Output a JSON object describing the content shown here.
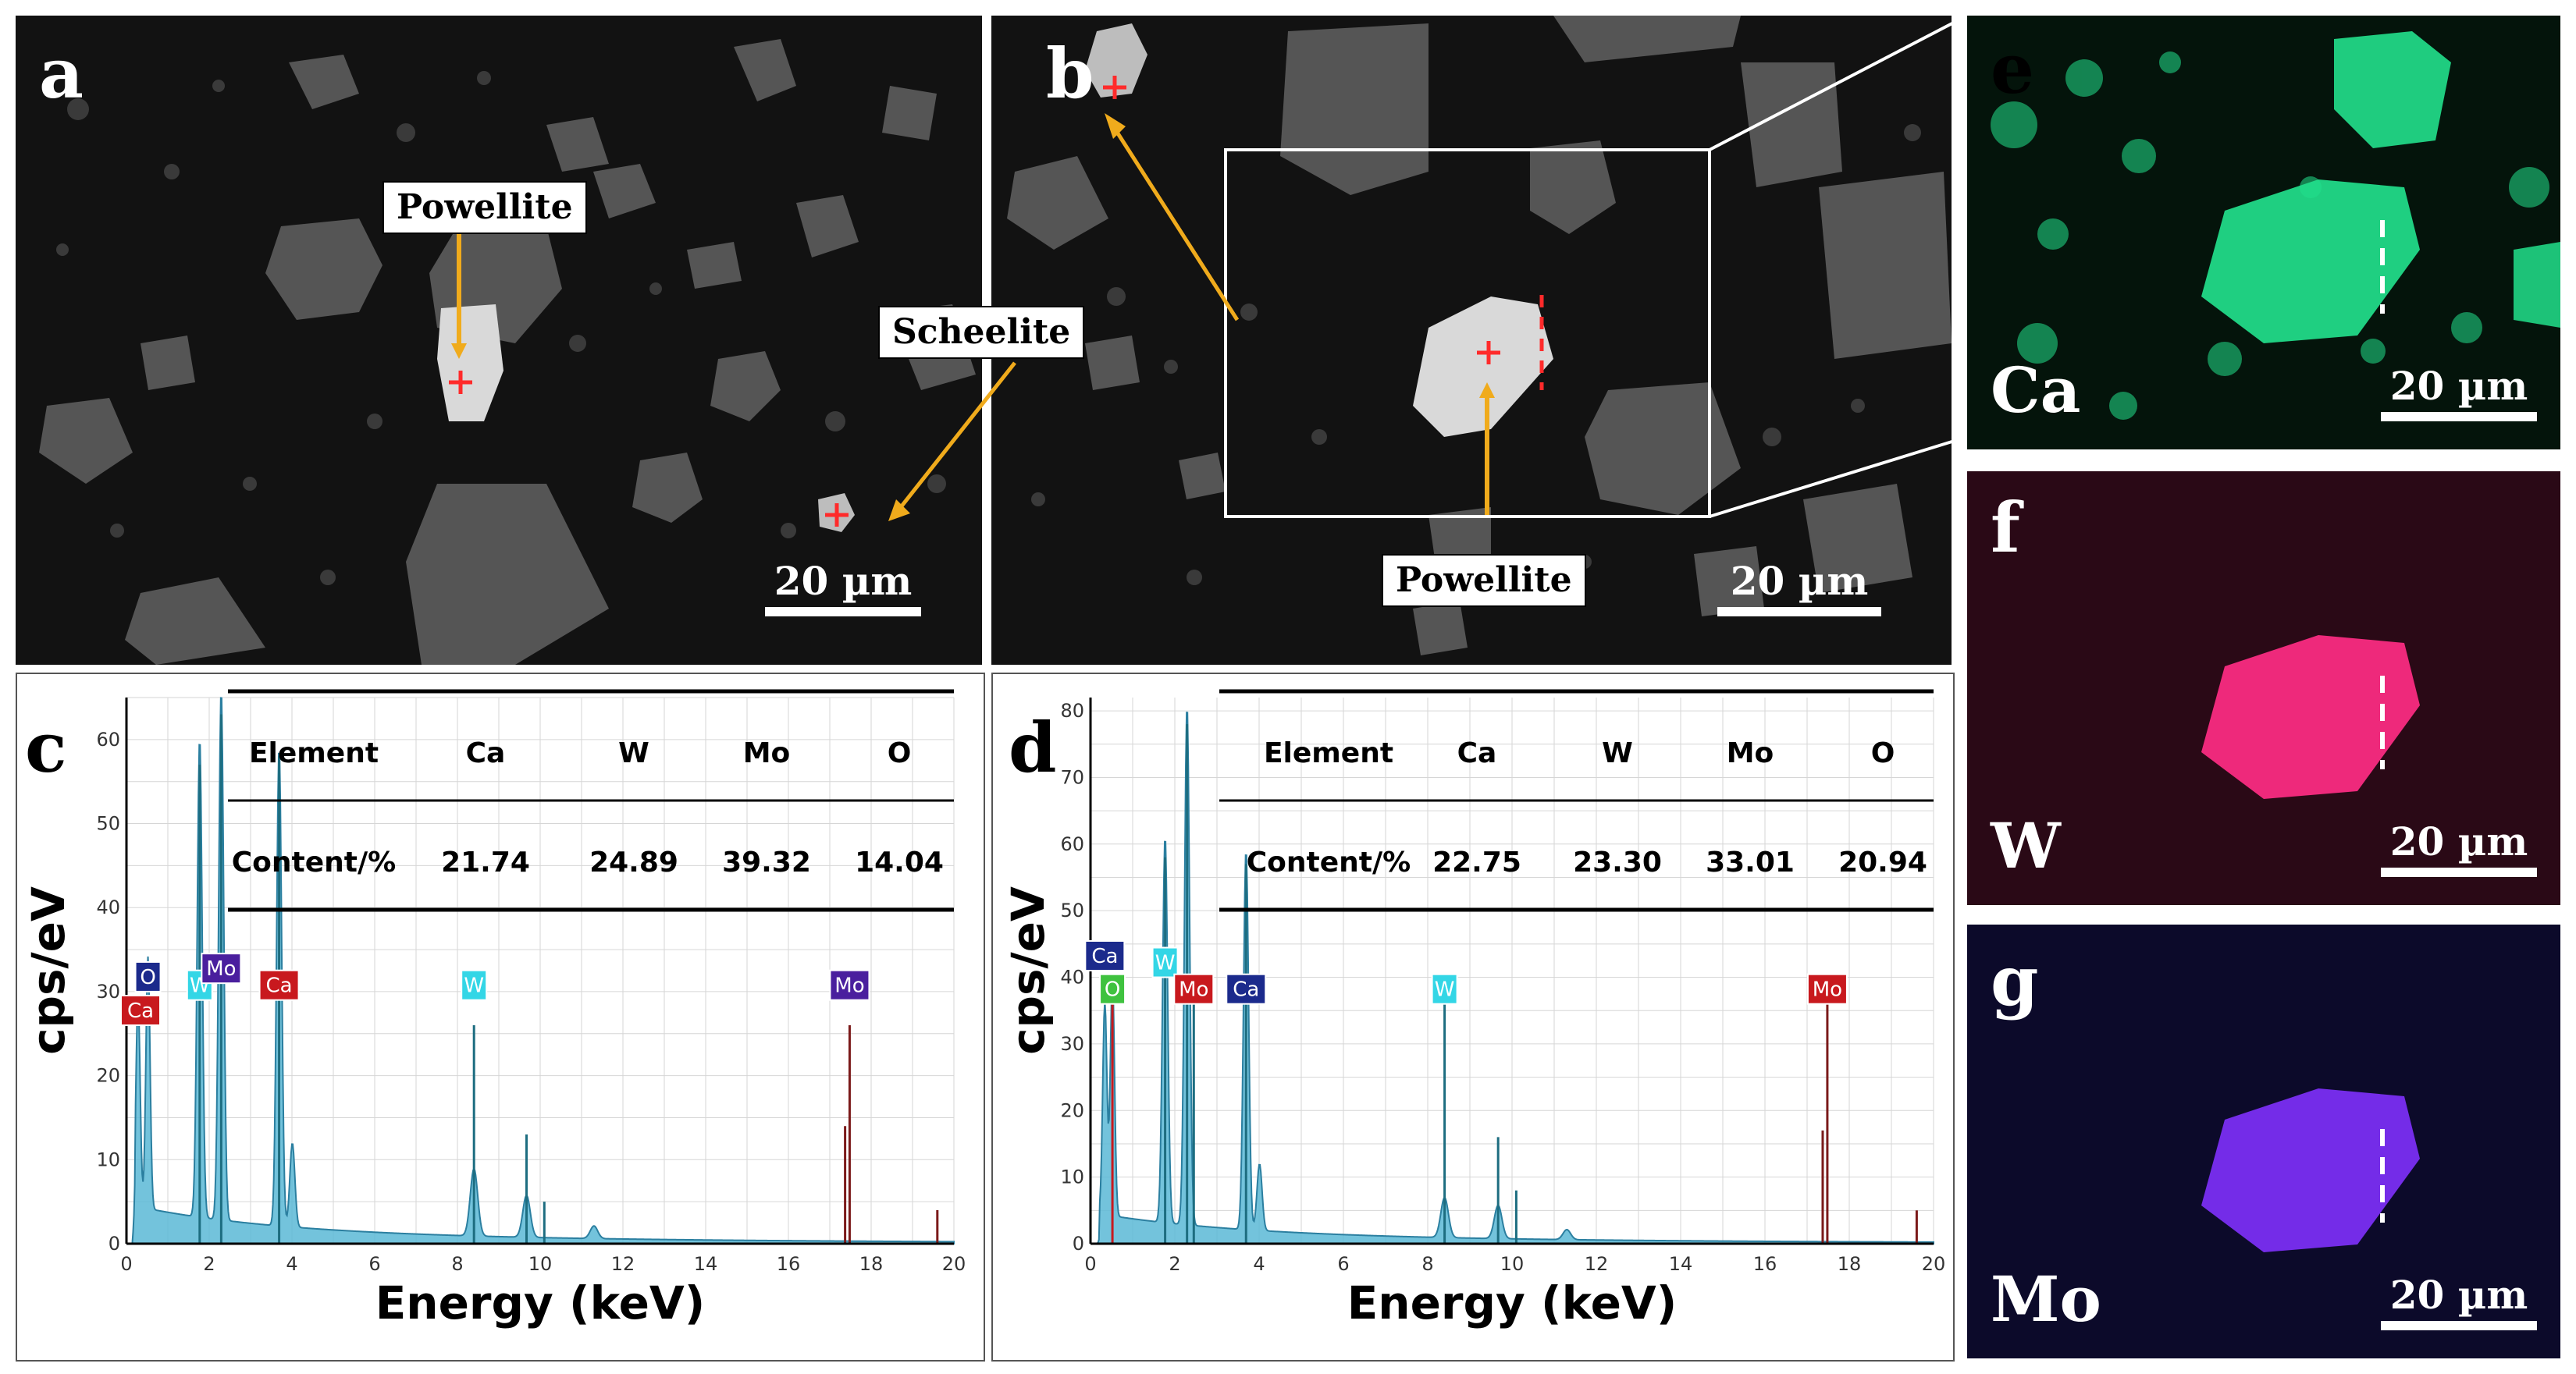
{
  "panels": {
    "a": {
      "letter": "a",
      "callout": "Powellite",
      "scale": "20 µm"
    },
    "b": {
      "letter": "b",
      "callout_scheelite": "Scheelite",
      "callout_powellite": "Powellite",
      "scale": "20 µm"
    },
    "e": {
      "letter": "e",
      "element": "Ca",
      "scale": "20 µm"
    },
    "f": {
      "letter": "f",
      "element": "W",
      "scale": "20 µm"
    },
    "g": {
      "letter": "g",
      "element": "Mo",
      "scale": "20 µm"
    },
    "c": {
      "letter": "c"
    },
    "d": {
      "letter": "d"
    }
  },
  "colors": {
    "ca_map": "#22e08c",
    "w_map": "#ff2d84",
    "mo_map": "#7a2ef2",
    "spectrum_fill": "#5bb9d6"
  },
  "chart_data": [
    {
      "type": "line",
      "panel": "c",
      "xlabel": "Energy (keV)",
      "ylabel": "cps/eV",
      "xlim": [
        0,
        20
      ],
      "ylim": [
        0,
        65
      ],
      "xticks": [
        0,
        2,
        4,
        6,
        8,
        10,
        12,
        14,
        16,
        18,
        20
      ],
      "yticks": [
        0,
        10,
        20,
        30,
        40,
        50,
        60
      ],
      "peaks": [
        {
          "x": 0.28,
          "y": 25
        },
        {
          "x": 0.52,
          "y": 30
        },
        {
          "x": 1.77,
          "y": 57
        },
        {
          "x": 2.29,
          "y": 63
        },
        {
          "x": 3.69,
          "y": 57
        },
        {
          "x": 4.01,
          "y": 10
        },
        {
          "x": 8.4,
          "y": 8
        },
        {
          "x": 9.67,
          "y": 5
        },
        {
          "x": 11.3,
          "y": 1.5
        }
      ],
      "lines": [
        {
          "x": 1.77,
          "h": 57
        },
        {
          "x": 2.29,
          "h": 63
        },
        {
          "x": 3.69,
          "h": 58
        },
        {
          "x": 8.4,
          "h": 26
        },
        {
          "x": 9.67,
          "h": 13
        },
        {
          "x": 10.1,
          "h": 5
        },
        {
          "x": 17.48,
          "h": 26
        },
        {
          "x": 17.37,
          "h": 14
        },
        {
          "x": 19.6,
          "h": 4
        }
      ],
      "markers": [
        {
          "label": "O",
          "x": 0.52,
          "y": 30,
          "color": "#1b2a8c"
        },
        {
          "label": "Ca",
          "x": 0.34,
          "y": 26,
          "color": "#c8191e"
        },
        {
          "label": "W",
          "x": 1.77,
          "y": 29,
          "color": "#33d6e6"
        },
        {
          "label": "Mo",
          "x": 2.29,
          "y": 31,
          "color": "#4a1f9e"
        },
        {
          "label": "Ca",
          "x": 3.69,
          "y": 29,
          "color": "#c8191e"
        },
        {
          "label": "W",
          "x": 8.4,
          "y": 29,
          "color": "#33d6e6"
        },
        {
          "label": "Mo",
          "x": 17.48,
          "y": 29,
          "color": "#4a1f9e"
        }
      ],
      "table": {
        "headers": [
          "Element",
          "Ca",
          "W",
          "Mo",
          "O"
        ],
        "row_label": "Content/%",
        "values": [
          "21.74",
          "24.89",
          "39.32",
          "14.04"
        ]
      }
    },
    {
      "type": "line",
      "panel": "d",
      "xlabel": "Energy (keV)",
      "ylabel": "cps/eV",
      "xlim": [
        0,
        20
      ],
      "ylim": [
        0,
        82
      ],
      "xticks": [
        0,
        2,
        4,
        6,
        8,
        10,
        12,
        14,
        16,
        18,
        20
      ],
      "yticks": [
        0,
        10,
        20,
        30,
        40,
        50,
        60,
        70,
        80
      ],
      "peaks": [
        {
          "x": 0.34,
          "y": 32
        },
        {
          "x": 0.52,
          "y": 36
        },
        {
          "x": 1.77,
          "y": 58
        },
        {
          "x": 2.29,
          "y": 78
        },
        {
          "x": 3.69,
          "y": 57
        },
        {
          "x": 4.01,
          "y": 10
        },
        {
          "x": 8.4,
          "y": 6
        },
        {
          "x": 9.67,
          "y": 5
        },
        {
          "x": 11.3,
          "y": 1.5
        }
      ],
      "lines": [
        {
          "x": 0.52,
          "h": 36
        },
        {
          "x": 1.77,
          "h": 58
        },
        {
          "x": 2.29,
          "h": 78
        },
        {
          "x": 2.45,
          "h": 36
        },
        {
          "x": 3.69,
          "h": 57
        },
        {
          "x": 8.4,
          "h": 36
        },
        {
          "x": 9.67,
          "h": 16
        },
        {
          "x": 10.1,
          "h": 8
        },
        {
          "x": 17.48,
          "h": 36
        },
        {
          "x": 17.37,
          "h": 17
        },
        {
          "x": 19.6,
          "h": 5
        }
      ],
      "markers": [
        {
          "label": "Ca",
          "x": 0.34,
          "y": 41,
          "color": "#1b2a8c"
        },
        {
          "label": "O",
          "x": 0.52,
          "y": 36,
          "color": "#3fc23f"
        },
        {
          "label": "W",
          "x": 1.77,
          "y": 40,
          "color": "#33d6e6"
        },
        {
          "label": "Mo",
          "x": 2.45,
          "y": 36,
          "color": "#c8191e"
        },
        {
          "label": "Ca",
          "x": 3.69,
          "y": 36,
          "color": "#1b2a8c"
        },
        {
          "label": "W",
          "x": 8.4,
          "y": 36,
          "color": "#33d6e6"
        },
        {
          "label": "Mo",
          "x": 17.48,
          "y": 36,
          "color": "#c8191e"
        }
      ],
      "table": {
        "headers": [
          "Element",
          "Ca",
          "W",
          "Mo",
          "O"
        ],
        "row_label": "Content/%",
        "values": [
          "22.75",
          "23.30",
          "33.01",
          "20.94"
        ]
      }
    }
  ]
}
